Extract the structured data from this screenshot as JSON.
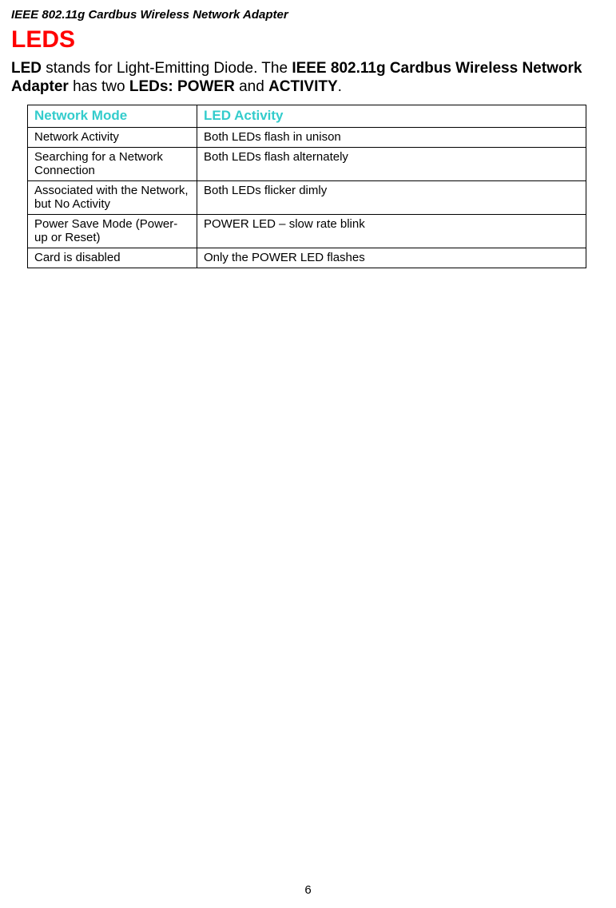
{
  "doc_header": "IEEE 802.11g Cardbus Wireless Network Adapter",
  "section_title": "LEDS",
  "intro": {
    "p1_lead_bold": "LED",
    "p1_text1": " stands for Light-Emitting Diode. The ",
    "p1_bold2": "IEEE 802.11g  Cardbus Wireless Network Adapter",
    "p1_text2": " has two ",
    "p1_bold3": "LEDs:  POWER",
    "p1_text3": " and ",
    "p1_bold4": "ACTIVITY",
    "p1_text4": "."
  },
  "table": {
    "header_mode": "Network Mode",
    "header_activity": "LED Activity",
    "rows": [
      {
        "mode": "Network Activity",
        "activity": "Both LEDs flash in unison"
      },
      {
        "mode": "Searching for a Network Connection",
        "activity": "Both LEDs flash alternately"
      },
      {
        "mode": "Associated with the Network, but No Activity",
        "activity": "Both LEDs flicker dimly"
      },
      {
        "mode": "Power Save Mode (Power-up or Reset)",
        "activity": "POWER LED – slow rate blink"
      },
      {
        "mode": "Card is disabled",
        "activity": "Only the POWER LED flashes"
      }
    ],
    "colors": {
      "header_text": "#33cccc",
      "border": "#000000"
    }
  },
  "page_number": "6"
}
